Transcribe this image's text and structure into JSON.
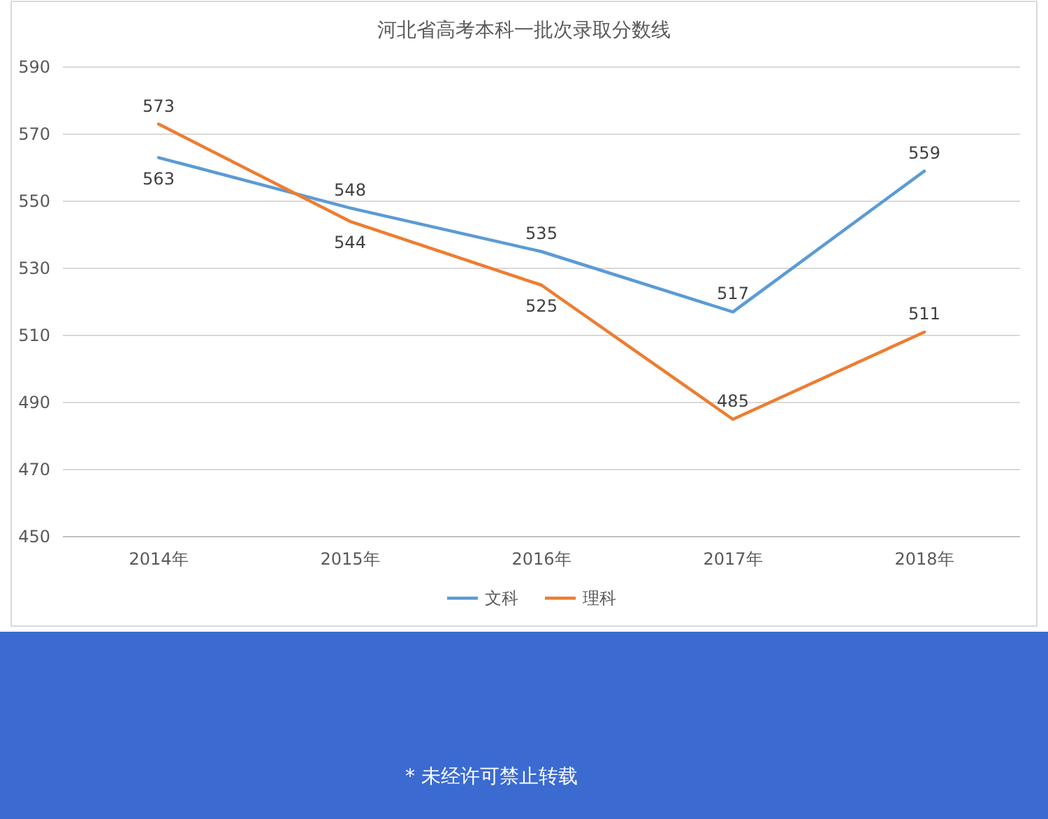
{
  "chart_data": {
    "type": "line",
    "title": "河北省高考本科一批次录取分数线",
    "categories": [
      "2014年",
      "2015年",
      "2016年",
      "2017年",
      "2018年"
    ],
    "series": [
      {
        "name": "文科",
        "color": "#5b9bd5",
        "values": [
          563,
          548,
          535,
          517,
          559
        ]
      },
      {
        "name": "理科",
        "color": "#ed7d31",
        "values": [
          573,
          544,
          525,
          485,
          511
        ]
      }
    ],
    "ylim": [
      450,
      590
    ],
    "yticks": [
      450,
      470,
      490,
      510,
      530,
      550,
      570,
      590
    ],
    "grid": "y",
    "legend": "bottom",
    "data_labels": true,
    "marker": "none",
    "annotations": [
      "* 未经许可禁止转载"
    ]
  }
}
